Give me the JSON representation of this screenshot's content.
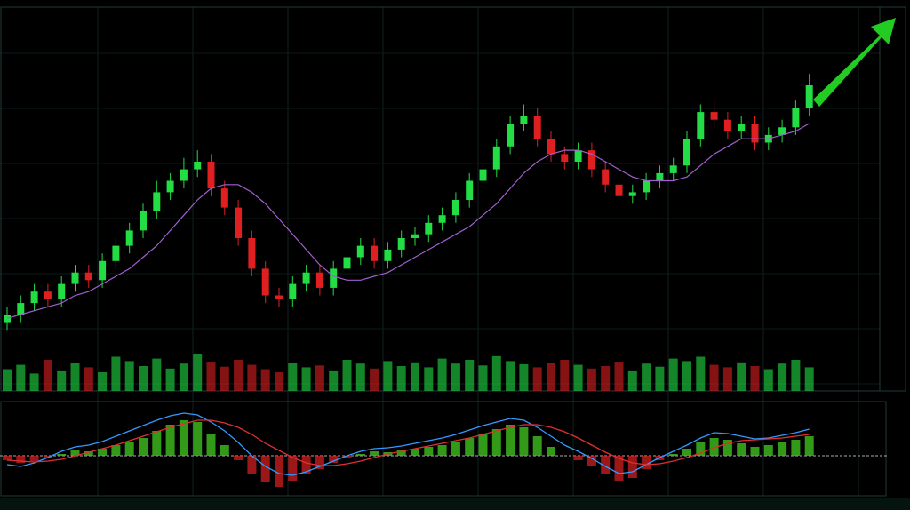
{
  "chart_data": [
    {
      "type": "candlestick",
      "ylim": [
        0,
        100
      ],
      "up_color": "#22dd44",
      "down_color": "#e02020",
      "open": [
        18,
        20,
        23,
        26,
        24,
        28,
        31,
        29,
        34,
        38,
        42,
        47,
        52,
        55,
        58,
        60,
        53,
        48,
        40,
        32,
        25,
        24,
        28,
        31,
        27,
        32,
        35,
        38,
        34,
        37,
        40,
        41,
        44,
        46,
        50,
        55,
        58,
        64,
        70,
        72,
        66,
        62,
        60,
        63,
        58,
        54,
        51,
        52,
        55,
        57,
        59,
        66,
        73,
        71,
        68,
        70,
        65,
        67,
        69,
        74
      ],
      "high": [
        22,
        25,
        28,
        28,
        30,
        33,
        33,
        36,
        40,
        44,
        49,
        55,
        57,
        61,
        63,
        62,
        55,
        50,
        42,
        34,
        27,
        30,
        33,
        33,
        34,
        37,
        40,
        40,
        39,
        42,
        43,
        46,
        48,
        52,
        57,
        60,
        66,
        72,
        75,
        74,
        68,
        64,
        65,
        65,
        60,
        56,
        54,
        57,
        59,
        61,
        68,
        75,
        76,
        73,
        72,
        72,
        69,
        71,
        76,
        83
      ],
      "low": [
        16,
        18,
        21,
        22,
        22,
        26,
        27,
        27,
        32,
        36,
        40,
        45,
        50,
        53,
        56,
        51,
        46,
        38,
        30,
        23,
        22,
        22,
        26,
        25,
        25,
        30,
        33,
        32,
        32,
        35,
        38,
        39,
        42,
        44,
        48,
        53,
        56,
        62,
        68,
        64,
        60,
        58,
        58,
        56,
        52,
        49,
        49,
        50,
        53,
        55,
        57,
        64,
        69,
        66,
        66,
        63,
        63,
        65,
        67,
        72
      ],
      "close": [
        20,
        23,
        26,
        24,
        28,
        31,
        29,
        34,
        38,
        42,
        47,
        52,
        55,
        58,
        60,
        53,
        48,
        40,
        32,
        25,
        24,
        28,
        31,
        27,
        32,
        35,
        38,
        34,
        37,
        40,
        41,
        44,
        46,
        50,
        55,
        58,
        64,
        70,
        72,
        66,
        62,
        60,
        63,
        58,
        54,
        51,
        52,
        55,
        57,
        59,
        66,
        73,
        71,
        68,
        70,
        65,
        67,
        69,
        74,
        80
      ],
      "ma": {
        "color": "#a060d0",
        "values": [
          19,
          20,
          21,
          22,
          23,
          25,
          26,
          28,
          30,
          32,
          35,
          38,
          42,
          46,
          50,
          53,
          54,
          54,
          52,
          49,
          45,
          41,
          37,
          33,
          30,
          29,
          29,
          30,
          31,
          33,
          35,
          37,
          39,
          41,
          43,
          46,
          49,
          53,
          57,
          60,
          62,
          63,
          63,
          62,
          60,
          58,
          56,
          55,
          55,
          55,
          56,
          59,
          62,
          64,
          66,
          66,
          66,
          67,
          68,
          70
        ]
      },
      "volume": {
        "ylim": [
          0,
          100
        ],
        "values": [
          35,
          42,
          28,
          50,
          33,
          45,
          38,
          30,
          55,
          48,
          40,
          52,
          36,
          44,
          60,
          47,
          39,
          50,
          42,
          35,
          30,
          45,
          38,
          41,
          33,
          50,
          44,
          36,
          48,
          40,
          46,
          38,
          52,
          44,
          50,
          41,
          56,
          48,
          43,
          38,
          45,
          50,
          42,
          36,
          40,
          47,
          33,
          44,
          39,
          52,
          48,
          55,
          42,
          38,
          46,
          40,
          35,
          44,
          50,
          38
        ]
      }
    },
    {
      "type": "macd",
      "ylim": [
        -50,
        50
      ],
      "up_color": "#44cc22",
      "down_color": "#d02020",
      "histogram": [
        -5,
        -8,
        -6,
        -3,
        2,
        6,
        5,
        8,
        12,
        15,
        20,
        28,
        35,
        40,
        38,
        25,
        12,
        -5,
        -20,
        -30,
        -35,
        -28,
        -20,
        -15,
        -8,
        -3,
        2,
        5,
        4,
        6,
        8,
        10,
        12,
        15,
        20,
        25,
        30,
        35,
        32,
        22,
        10,
        0,
        -5,
        -12,
        -20,
        -28,
        -25,
        -15,
        -5,
        2,
        8,
        15,
        20,
        18,
        14,
        10,
        12,
        15,
        18,
        22
      ],
      "lines": [
        {
          "color": "#3399ff",
          "values": [
            -10,
            -12,
            -8,
            -2,
            5,
            10,
            12,
            16,
            22,
            28,
            34,
            40,
            45,
            48,
            46,
            38,
            28,
            15,
            0,
            -12,
            -20,
            -22,
            -18,
            -12,
            -6,
            0,
            5,
            8,
            9,
            11,
            14,
            17,
            20,
            24,
            29,
            34,
            38,
            42,
            40,
            32,
            22,
            12,
            5,
            -3,
            -12,
            -20,
            -18,
            -10,
            -2,
            5,
            12,
            20,
            26,
            25,
            22,
            19,
            20,
            23,
            26,
            30
          ]
        },
        {
          "color": "#e03030",
          "values": [
            -5,
            -6,
            -7,
            -6,
            -4,
            0,
            4,
            8,
            12,
            17,
            22,
            27,
            32,
            36,
            40,
            40,
            37,
            32,
            24,
            14,
            6,
            -2,
            -8,
            -11,
            -11,
            -9,
            -6,
            -2,
            2,
            5,
            8,
            11,
            14,
            17,
            20,
            24,
            28,
            32,
            35,
            35,
            32,
            27,
            20,
            12,
            4,
            -3,
            -8,
            -10,
            -9,
            -6,
            -2,
            3,
            9,
            14,
            17,
            18,
            19,
            20,
            22,
            24
          ]
        }
      ]
    }
  ]
}
